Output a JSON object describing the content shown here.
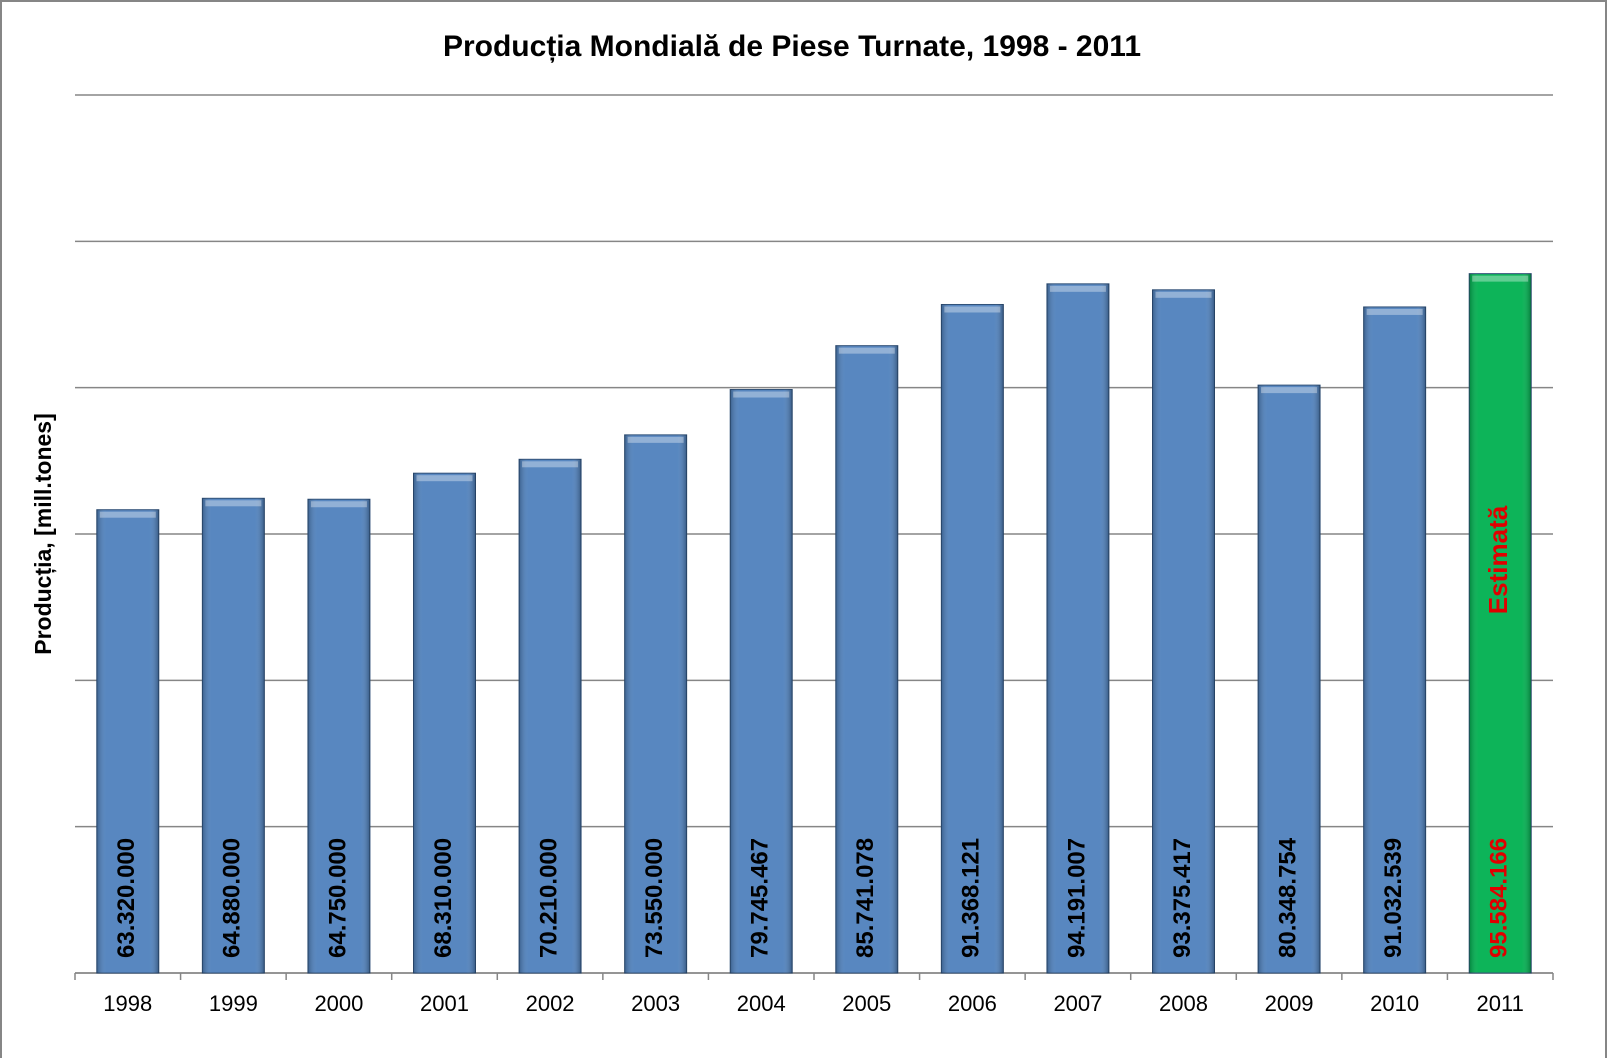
{
  "chart_data": {
    "type": "bar",
    "title": "Producția Mondială de Piese Turnate, 1998 - 2011",
    "y_label": "Producția, [mill.tones]",
    "categories": [
      "1998",
      "1999",
      "2000",
      "2001",
      "2002",
      "2003",
      "2004",
      "2005",
      "2006",
      "2007",
      "2008",
      "2009",
      "2010",
      "2011"
    ],
    "values": [
      63.32,
      64.88,
      64.75,
      68.31,
      70.21,
      73.55,
      79.745467,
      85.741078,
      91.368121,
      94.191007,
      93.375417,
      80.348754,
      91.032539,
      95.584166
    ],
    "value_labels": [
      "63.320.000",
      "64.880.000",
      "64.750.000",
      "68.310.000",
      "70.210.000",
      "73.550.000",
      "79.745.467",
      "85.741.078",
      "91.368.121",
      "94.191.007",
      "93.375.417",
      "80.348.754",
      "91.032.539",
      "95.584.166"
    ],
    "colors": [
      "#4f81bd",
      "#4f81bd",
      "#4f81bd",
      "#4f81bd",
      "#4f81bd",
      "#4f81bd",
      "#4f81bd",
      "#4f81bd",
      "#4f81bd",
      "#4f81bd",
      "#4f81bd",
      "#4f81bd",
      "#4f81bd",
      "#00b050"
    ],
    "label_colors": [
      "#000000",
      "#000000",
      "#000000",
      "#000000",
      "#000000",
      "#000000",
      "#000000",
      "#000000",
      "#000000",
      "#000000",
      "#000000",
      "#000000",
      "#000000",
      "#e00000"
    ],
    "annotation": {
      "text": "Estimată",
      "category": 13,
      "color": "#e00000"
    },
    "ylim": [
      0,
      120
    ],
    "yticks": [
      0,
      20,
      40,
      60,
      80,
      100,
      120
    ],
    "grid": true
  }
}
